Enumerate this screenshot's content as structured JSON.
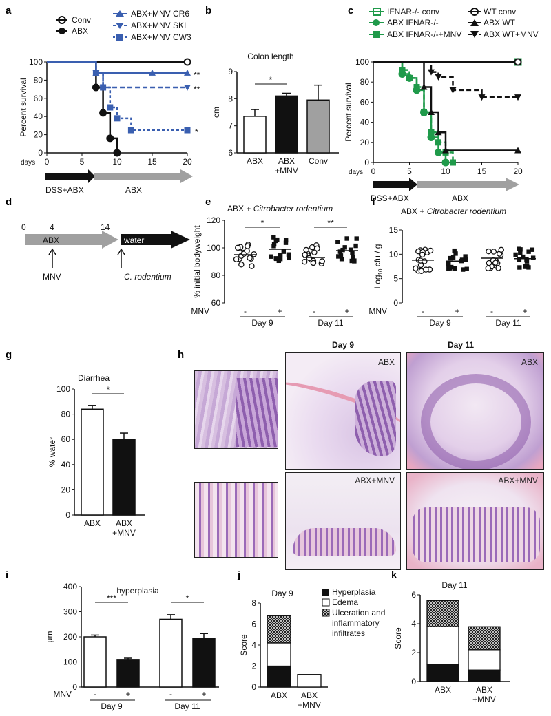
{
  "panel_labels": [
    "a",
    "b",
    "c",
    "d",
    "e",
    "f",
    "g",
    "h",
    "i",
    "j",
    "k"
  ],
  "colors": {
    "black": "#111111",
    "blue": "#3a5fb0",
    "green": "#1f9a4a",
    "grey": "#a0a0a0"
  },
  "chart_data": [
    {
      "id": "a",
      "type": "line",
      "ylabel": "Percent survival",
      "xlabel": "days",
      "xlim": [
        0,
        20
      ],
      "ylim": [
        0,
        100
      ],
      "xticks": [
        0,
        5,
        10,
        15,
        20
      ],
      "yticks": [
        0,
        20,
        40,
        60,
        80,
        100
      ],
      "series": [
        {
          "name": "Conv",
          "x": [
            0,
            20
          ],
          "y": [
            100,
            100
          ]
        },
        {
          "name": "ABX",
          "x": [
            0,
            7,
            8,
            9,
            10
          ],
          "y": [
            100,
            72,
            44,
            16,
            0
          ]
        },
        {
          "name": "ABX+MNV CR6",
          "x": [
            0,
            7,
            15,
            20
          ],
          "y": [
            100,
            88,
            88,
            88
          ]
        },
        {
          "name": "ABX+MNV SKI",
          "x": [
            0,
            7,
            8,
            20
          ],
          "y": [
            100,
            88,
            72,
            72
          ]
        },
        {
          "name": "ABX+MNV CW3",
          "x": [
            0,
            7,
            8,
            9,
            10,
            12,
            20
          ],
          "y": [
            100,
            88,
            72,
            50,
            38,
            25,
            25
          ]
        }
      ],
      "annotations": [
        "**",
        "**",
        "*"
      ],
      "arrows": [
        {
          "label": "DSS+ABX",
          "from": 0,
          "to": 7
        },
        {
          "label": "ABX",
          "from": 7,
          "to": 20
        }
      ]
    },
    {
      "id": "b",
      "type": "bar",
      "title": "Colon length",
      "ylabel": "cm",
      "categories": [
        "ABX",
        "ABX\n+MNV",
        "Conv"
      ],
      "values": [
        7.35,
        8.1,
        7.95
      ],
      "errors": [
        0.25,
        0.1,
        0.55
      ],
      "ylim": [
        6,
        9
      ],
      "yticks": [
        6,
        7,
        8,
        9
      ],
      "significance": [
        {
          "pair": [
            0,
            1
          ],
          "label": "*"
        }
      ]
    },
    {
      "id": "c",
      "type": "line",
      "ylabel": "Percent survival",
      "xlabel": "days",
      "xlim": [
        0,
        20
      ],
      "ylim": [
        0,
        100
      ],
      "xticks": [
        0,
        5,
        10,
        15,
        20
      ],
      "yticks": [
        0,
        20,
        40,
        60,
        80,
        100
      ],
      "series": [
        {
          "name": "IFNAR-/- conv",
          "x": [
            0,
            20
          ],
          "y": [
            100,
            100
          ]
        },
        {
          "name": "ABX IFNAR-/-",
          "x": [
            0,
            4,
            5,
            6,
            7,
            8,
            9,
            10
          ],
          "y": [
            100,
            88,
            84,
            72,
            50,
            25,
            10,
            0
          ]
        },
        {
          "name": "ABX IFNAR-/-+MNV",
          "x": [
            0,
            4,
            5,
            6,
            7,
            8,
            9,
            10,
            11
          ],
          "y": [
            100,
            92,
            84,
            75,
            50,
            30,
            20,
            10,
            0
          ]
        },
        {
          "name": "WT conv",
          "x": [
            0,
            20
          ],
          "y": [
            100,
            100
          ]
        },
        {
          "name": "ABX WT",
          "x": [
            0,
            7,
            8,
            9,
            10,
            20
          ],
          "y": [
            100,
            75,
            50,
            30,
            12,
            12
          ]
        },
        {
          "name": "ABX WT+MNV",
          "x": [
            0,
            8,
            9,
            11,
            15,
            20
          ],
          "y": [
            100,
            90,
            85,
            72,
            65,
            65
          ]
        }
      ],
      "arrows": [
        {
          "label": "DSS+ABX",
          "from": 0,
          "to": 6
        },
        {
          "label": "ABX",
          "from": 6,
          "to": 20
        }
      ]
    },
    {
      "id": "d",
      "type": "timeline",
      "ticks": [
        "0",
        "4",
        "14"
      ],
      "segments": [
        "ABX",
        "water"
      ],
      "events": [
        "MNV",
        "C. rodentium"
      ]
    },
    {
      "id": "e",
      "type": "scatter",
      "title": "ABX + Citrobacter rodentium",
      "ylabel": "% initial bodyweight",
      "ylim": [
        60,
        120
      ],
      "yticks": [
        60,
        80,
        100,
        120
      ],
      "factor_label": "MNV",
      "groups": [
        "-",
        "+",
        "-",
        "+"
      ],
      "days": [
        "Day 9",
        "Day 11"
      ],
      "means": [
        95,
        99,
        93,
        98
      ],
      "significance": [
        "*",
        "**"
      ]
    },
    {
      "id": "f",
      "type": "scatter",
      "title": "ABX + Citrobacter rodentium",
      "ylabel": "Log10 cfu / g",
      "ylim": [
        0,
        15
      ],
      "yticks": [
        0,
        5,
        10,
        15
      ],
      "factor_label": "MNV",
      "groups": [
        "-",
        "+",
        "-",
        "+"
      ],
      "days": [
        "Day 9",
        "Day 11"
      ],
      "means": [
        8.8,
        8.6,
        9.2,
        9.1
      ]
    },
    {
      "id": "g",
      "type": "bar",
      "title": "Diarrhea",
      "ylabel": "% water",
      "categories": [
        "ABX",
        "ABX\n+MNV"
      ],
      "values": [
        84,
        60
      ],
      "errors": [
        3,
        5
      ],
      "ylim": [
        0,
        100
      ],
      "yticks": [
        0,
        20,
        40,
        60,
        80,
        100
      ],
      "significance": [
        {
          "pair": [
            0,
            1
          ],
          "label": "*"
        }
      ]
    },
    {
      "id": "i",
      "type": "bar",
      "title": "hyperplasia",
      "ylabel": "μm",
      "factor_label": "MNV",
      "groups": [
        "-",
        "+",
        "-",
        "+"
      ],
      "days": [
        "Day 9",
        "Day 11"
      ],
      "values": [
        200,
        110,
        270,
        193
      ],
      "errors": [
        7,
        5,
        18,
        20
      ],
      "ylim": [
        0,
        400
      ],
      "yticks": [
        0,
        100,
        200,
        300,
        400
      ],
      "significance": [
        "***",
        "*"
      ]
    },
    {
      "id": "j",
      "type": "bar",
      "title": "Day 9",
      "ylabel": "Score",
      "categories": [
        "ABX",
        "ABX\n+MNV"
      ],
      "ylim": [
        0,
        8
      ],
      "yticks": [
        0,
        2,
        4,
        6,
        8
      ],
      "series": [
        {
          "name": "Hyperplasia",
          "values": [
            2.0,
            0
          ]
        },
        {
          "name": "Edema",
          "values": [
            2.2,
            1.2
          ]
        },
        {
          "name": "Ulceration and inflammatory infiltrates",
          "values": [
            2.6,
            0
          ]
        }
      ]
    },
    {
      "id": "k",
      "type": "bar",
      "title": "Day 11",
      "ylabel": "Score",
      "categories": [
        "ABX",
        "ABX\n+MNV"
      ],
      "ylim": [
        0,
        6
      ],
      "yticks": [
        0,
        2,
        4,
        6
      ],
      "series": [
        {
          "name": "Hyperplasia",
          "values": [
            1.2,
            0.8
          ]
        },
        {
          "name": "Edema",
          "values": [
            2.6,
            1.4
          ]
        },
        {
          "name": "Ulceration and inflammatory infiltrates",
          "values": [
            1.8,
            1.6
          ]
        }
      ]
    }
  ],
  "histology": {
    "day9": "Day 9",
    "day11": "Day 11",
    "abx": "ABX",
    "abx_mnv": "ABX+MNV"
  },
  "legend_extra": {
    "e_title_plain": "ABX + ",
    "e_title_italic": "Citrobacter rodentium",
    "log_label_a": "Log",
    "log_label_sub": "10",
    "log_label_b": " cfu / g",
    "j_legend": [
      "Hyperplasia",
      "Edema",
      "Ulceration and",
      "inflammatory",
      "infiltrates"
    ]
  }
}
